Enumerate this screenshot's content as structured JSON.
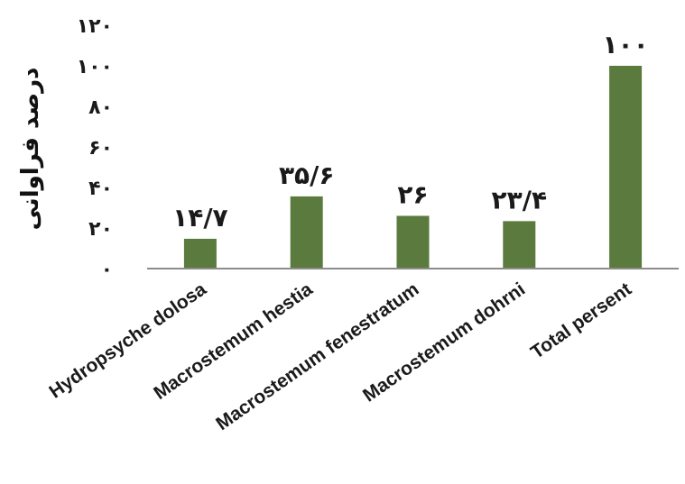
{
  "chart_data": {
    "type": "bar",
    "title": "",
    "xlabel": "",
    "ylabel": "درصد فراوانی",
    "categories": [
      "Hydropsyche dolosa",
      "Macrostemum hestia",
      "Macrostemum fenestratum",
      "Macrostemum dohrni",
      "Total persent"
    ],
    "values": [
      14.7,
      35.6,
      26,
      23.4,
      100
    ],
    "data_labels": [
      "۱۴/۷",
      "۳۵/۶",
      "۲۶",
      "۲۳/۴",
      "۱۰۰"
    ],
    "ylim": [
      0,
      120
    ],
    "yticks": [
      0,
      20,
      40,
      60,
      80,
      100,
      120
    ],
    "ytick_labels": [
      "۰",
      "۲۰",
      "۴۰",
      "۶۰",
      "۸۰",
      "۱۰۰",
      "۱۲۰"
    ],
    "grid": false,
    "legend": "none",
    "bar_color": "#5a7a3e",
    "axis_color": "#8c8c8c"
  }
}
